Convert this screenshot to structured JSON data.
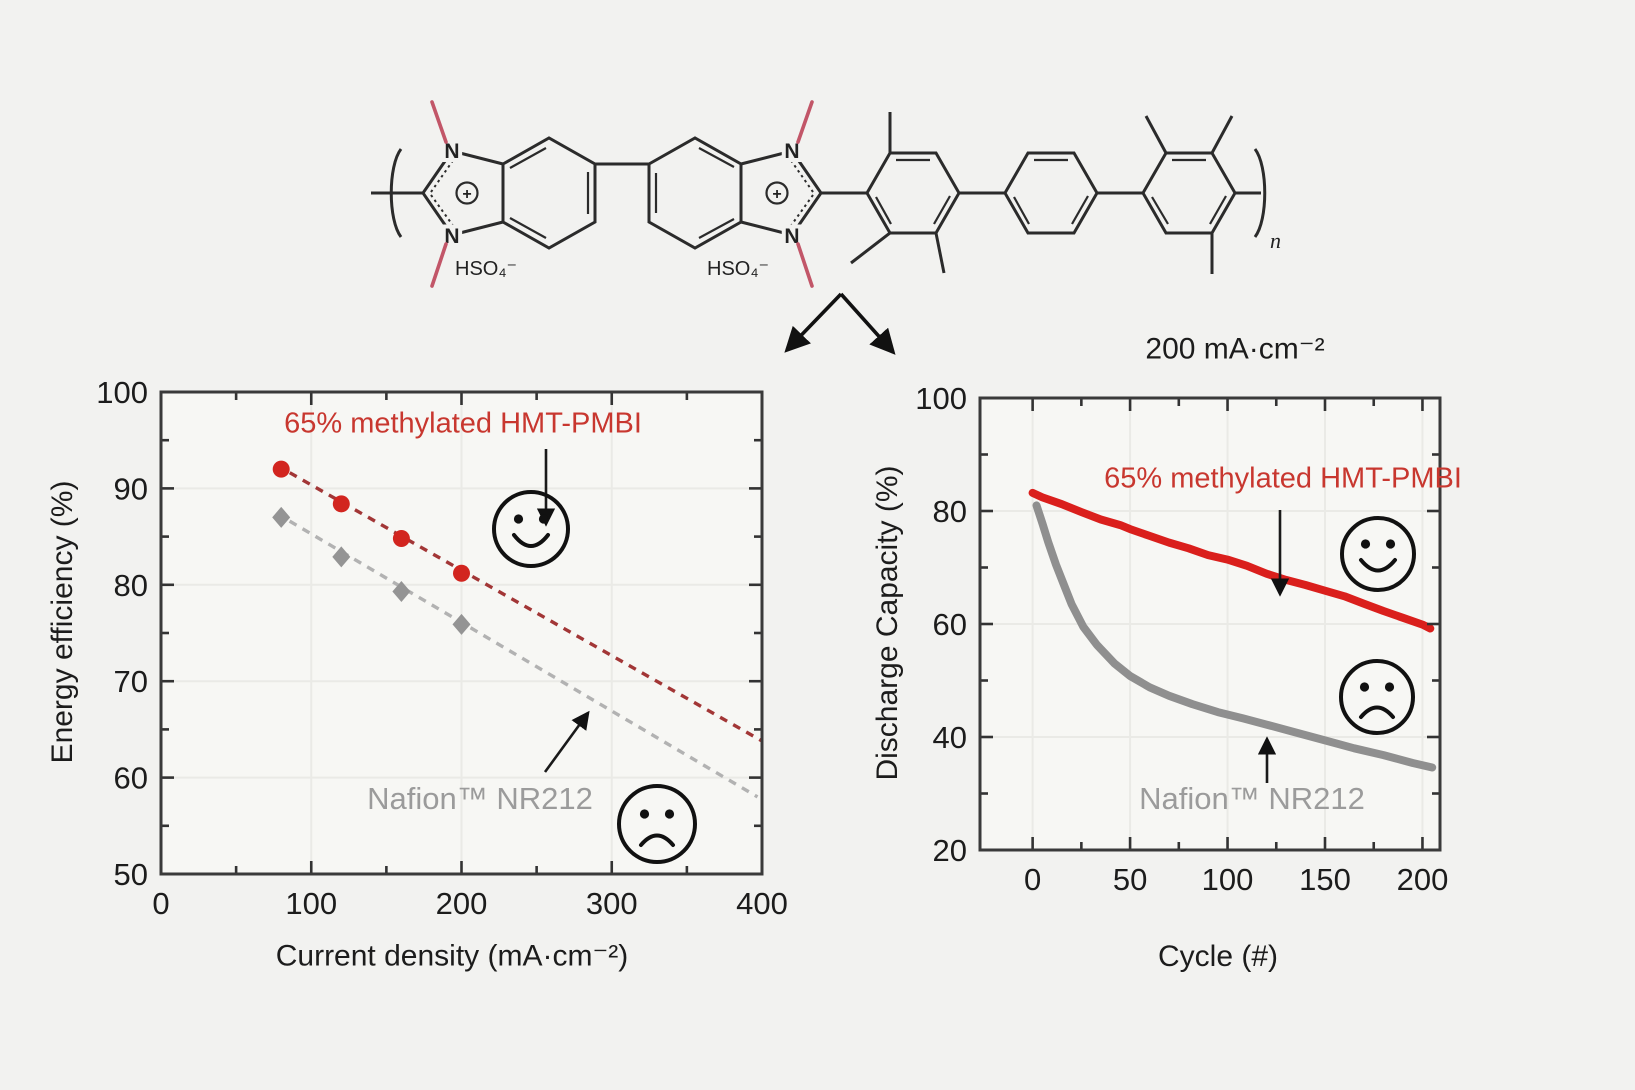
{
  "figure": {
    "background": "#f2f2f0",
    "accent_red": "#d2231f",
    "accent_gray": "#8f8f8f"
  },
  "structure": {
    "N_label": "N",
    "charge_plus": "+",
    "counterion": "HSO₄⁻",
    "repeat_subscript": "n"
  },
  "chart_data": [
    {
      "id": "energy-efficiency-vs-current-density",
      "type": "scatter",
      "title": "",
      "xlabel": "Current density (mA·cm⁻²)",
      "ylabel": "Energy efficiency (%)",
      "xlim": [
        0,
        400
      ],
      "ylim": [
        50,
        100
      ],
      "x_ticks": [
        0,
        100,
        200,
        300,
        400
      ],
      "y_ticks": [
        50,
        60,
        70,
        80,
        90,
        100
      ],
      "grid": true,
      "legend_position": "none",
      "series": [
        {
          "name": "65% methylated HMT-PMBI",
          "color": "#d2251f",
          "trend_color": "#a23636",
          "marker": "circle",
          "mood": "happy",
          "x": [
            80,
            120,
            160,
            200
          ],
          "y": [
            92.0,
            88.4,
            84.8,
            81.2
          ],
          "trend": {
            "x": [
              77,
              400
            ],
            "y": [
              92.4,
              63.8
            ]
          }
        },
        {
          "name": "Nafion™ NR212",
          "color": "#949494",
          "trend_color": "#b2b2b2",
          "marker": "diamond",
          "mood": "sad",
          "x": [
            80,
            120,
            160,
            200
          ],
          "y": [
            87.0,
            82.9,
            79.3,
            75.9
          ],
          "trend": {
            "x": [
              77,
              397
            ],
            "y": [
              87.4,
              58.0
            ]
          }
        }
      ]
    },
    {
      "id": "discharge-capacity-vs-cycle",
      "type": "line",
      "title": "200 mA·cm⁻²",
      "xlabel": "Cycle (#)",
      "ylabel": "Discharge Capacity (%)",
      "xlim": [
        -27,
        209
      ],
      "ylim": [
        20,
        100
      ],
      "x_ticks": [
        0,
        50,
        100,
        150,
        200
      ],
      "y_ticks": [
        20,
        40,
        60,
        80,
        100
      ],
      "grid": true,
      "legend_position": "none",
      "series": [
        {
          "name": "65% methylated HMT-PMBI",
          "color": "#da1f1c",
          "width": 8,
          "mood": "happy",
          "x": [
            0,
            5,
            15,
            25,
            35,
            45,
            50,
            60,
            70,
            80,
            90,
            100,
            110,
            120,
            130,
            140,
            150,
            160,
            170,
            180,
            190,
            200,
            204
          ],
          "y": [
            83.2,
            82.4,
            81.2,
            79.8,
            78.5,
            77.5,
            76.8,
            75.6,
            74.4,
            73.4,
            72.2,
            71.4,
            70.3,
            68.9,
            67.8,
            66.9,
            65.9,
            64.9,
            63.6,
            62.3,
            61.1,
            59.9,
            59.2
          ]
        },
        {
          "name": "Nafion™ NR212",
          "color": "#8f8f8f",
          "width": 8,
          "mood": "sad",
          "x": [
            2,
            5,
            8,
            12,
            16,
            20,
            26,
            33,
            42,
            50,
            60,
            70,
            82,
            95,
            108,
            120,
            135,
            150,
            165,
            180,
            195,
            205
          ],
          "y": [
            81.0,
            77.8,
            74.5,
            70.5,
            67.0,
            63.5,
            59.5,
            56.3,
            53.0,
            50.8,
            48.8,
            47.3,
            45.8,
            44.4,
            43.3,
            42.2,
            40.8,
            39.4,
            38.0,
            36.8,
            35.4,
            34.6
          ]
        }
      ]
    }
  ]
}
